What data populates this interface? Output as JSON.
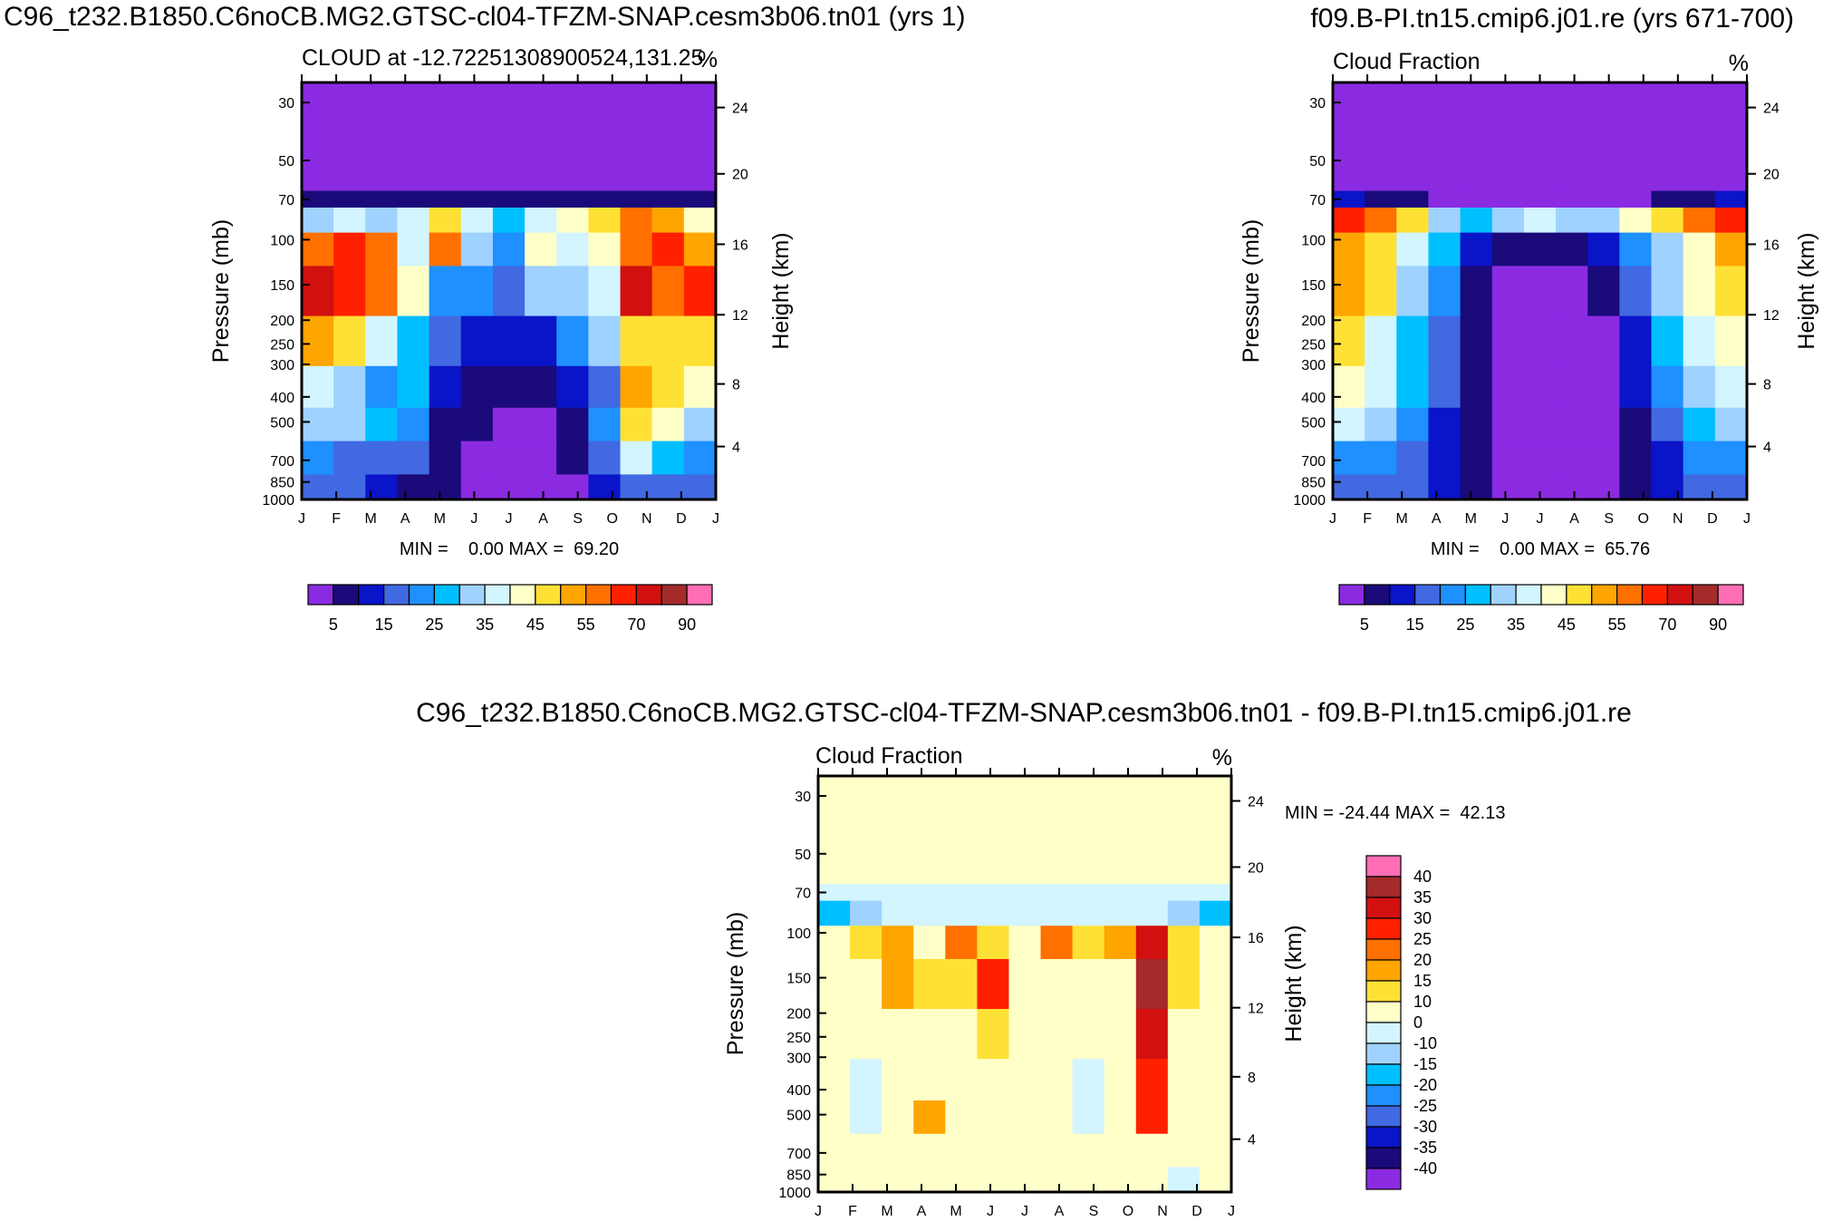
{
  "figure": {
    "title_left": "C96_t232.B1850.C6noCB.MG2.GTSC-cl04-TFZM-SNAP.cesm3b06.tn01 (yrs 1)",
    "title_right": "f09.B-PI.tn15.cmip6.j01.re (yrs 671-700)",
    "title_diff": "C96_t232.B1850.C6noCB.MG2.GTSC-cl04-TFZM-SNAP.cesm3b06.tn01 - f09.B-PI.tn15.cmip6.j01.re"
  },
  "colors": {
    "abs_levels": [
      "#8a2be2",
      "#1a0a7a",
      "#0a14c8",
      "#4169e1",
      "#1e90ff",
      "#00bfff",
      "#a0d2ff",
      "#d2f5ff",
      "#ffffc8",
      "#ffe135",
      "#ffa500",
      "#ff7000",
      "#ff2000",
      "#d21010",
      "#a52a2a",
      "#ff6eb4"
    ],
    "diff_levels": [
      "#8a2be2",
      "#1a0a7a",
      "#0a14c8",
      "#4169e1",
      "#1e90ff",
      "#00bfff",
      "#a0d2ff",
      "#d2f5ff",
      "#ffffc8",
      "#ffe135",
      "#ffa500",
      "#ff7000",
      "#ff2000",
      "#d21010",
      "#a52a2a",
      "#ff6eb4"
    ]
  },
  "chart_data": [
    {
      "id": "p1",
      "type": "heatmap",
      "title_left": "CLOUD at -12.72251308900524,131.25",
      "title_right": "%",
      "xlabel": "",
      "ylabel_left": "Pressure (mb)",
      "ylabel_right": "Height (km)",
      "x_ticks": [
        "J",
        "F",
        "M",
        "A",
        "M",
        "J",
        "J",
        "A",
        "S",
        "O",
        "N",
        "D",
        "J"
      ],
      "y_ticks": [
        "30",
        "50",
        "70",
        "100",
        "150",
        "200",
        "250",
        "300",
        "400",
        "500",
        "700",
        "850",
        "1000"
      ],
      "height_ticks": [
        "24",
        "20",
        "16",
        "12",
        "8",
        "4"
      ],
      "stats": "MIN =    0.00 MAX =  69.20",
      "colorbar_labels": [
        "5",
        "15",
        "25",
        "35",
        "45",
        "55",
        "70",
        "90"
      ],
      "grid": [
        [
          0,
          0,
          0,
          0,
          0,
          0,
          0,
          0,
          0,
          0,
          0,
          0,
          0
        ],
        [
          1,
          1,
          1,
          1,
          1,
          1,
          1,
          1,
          1,
          1,
          1,
          1,
          1
        ],
        [
          6,
          7,
          6,
          7,
          9,
          7,
          5,
          7,
          8,
          9,
          11,
          10,
          8
        ],
        [
          11,
          12,
          11,
          7,
          11,
          6,
          4,
          8,
          7,
          8,
          11,
          12,
          10
        ],
        [
          13,
          12,
          11,
          8,
          4,
          4,
          3,
          6,
          6,
          7,
          13,
          11,
          12
        ],
        [
          10,
          9,
          7,
          5,
          3,
          2,
          2,
          2,
          4,
          6,
          9,
          9,
          9
        ],
        [
          7,
          6,
          4,
          5,
          2,
          1,
          1,
          1,
          2,
          3,
          10,
          9,
          8
        ],
        [
          6,
          6,
          5,
          4,
          1,
          1,
          0,
          0,
          1,
          4,
          9,
          8,
          6
        ],
        [
          4,
          3,
          3,
          3,
          1,
          0,
          0,
          0,
          1,
          3,
          7,
          5,
          4
        ],
        [
          3,
          3,
          2,
          1,
          1,
          0,
          0,
          0,
          0,
          2,
          3,
          3,
          3
        ]
      ]
    },
    {
      "id": "p2",
      "type": "heatmap",
      "title_left": "Cloud Fraction",
      "title_right": "%",
      "xlabel": "",
      "ylabel_left": "Pressure (mb)",
      "ylabel_right": "Height (km)",
      "x_ticks": [
        "J",
        "F",
        "M",
        "A",
        "M",
        "J",
        "J",
        "A",
        "S",
        "O",
        "N",
        "D",
        "J"
      ],
      "y_ticks": [
        "30",
        "50",
        "70",
        "100",
        "150",
        "200",
        "250",
        "300",
        "400",
        "500",
        "700",
        "850",
        "1000"
      ],
      "height_ticks": [
        "24",
        "20",
        "16",
        "12",
        "8",
        "4"
      ],
      "stats": "MIN =    0.00 MAX =  65.76",
      "colorbar_labels": [
        "5",
        "15",
        "25",
        "35",
        "45",
        "55",
        "70",
        "90"
      ],
      "grid": [
        [
          0,
          0,
          0,
          0,
          0,
          0,
          0,
          0,
          0,
          0,
          0,
          0,
          0
        ],
        [
          2,
          1,
          1,
          0,
          0,
          0,
          0,
          0,
          0,
          0,
          1,
          1,
          2
        ],
        [
          12,
          11,
          9,
          6,
          5,
          6,
          7,
          6,
          6,
          8,
          9,
          11,
          12
        ],
        [
          10,
          9,
          7,
          5,
          2,
          1,
          1,
          1,
          2,
          4,
          6,
          8,
          10
        ],
        [
          10,
          9,
          6,
          4,
          1,
          0,
          0,
          0,
          1,
          3,
          6,
          8,
          9
        ],
        [
          9,
          7,
          5,
          3,
          1,
          0,
          0,
          0,
          0,
          2,
          5,
          7,
          8
        ],
        [
          8,
          7,
          5,
          3,
          1,
          0,
          0,
          0,
          0,
          2,
          4,
          6,
          7
        ],
        [
          7,
          6,
          4,
          2,
          1,
          0,
          0,
          0,
          0,
          1,
          3,
          5,
          6
        ],
        [
          4,
          4,
          3,
          2,
          1,
          0,
          0,
          0,
          0,
          1,
          2,
          4,
          4
        ],
        [
          3,
          3,
          3,
          2,
          1,
          0,
          0,
          0,
          0,
          1,
          2,
          3,
          3
        ]
      ]
    },
    {
      "id": "p3",
      "type": "heatmap",
      "title_left": "Cloud Fraction",
      "title_right": "%",
      "xlabel": "",
      "ylabel_left": "Pressure (mb)",
      "ylabel_right": "Height (km)",
      "x_ticks": [
        "J",
        "F",
        "M",
        "A",
        "M",
        "J",
        "J",
        "A",
        "S",
        "O",
        "N",
        "D",
        "J"
      ],
      "y_ticks": [
        "30",
        "50",
        "70",
        "100",
        "150",
        "200",
        "250",
        "300",
        "400",
        "500",
        "700",
        "850",
        "1000"
      ],
      "height_ticks": [
        "24",
        "20",
        "16",
        "12",
        "8",
        "4"
      ],
      "stats": "MIN = -24.44 MAX =  42.13",
      "colorbar_labels": [
        "40",
        "35",
        "30",
        "25",
        "20",
        "15",
        "10",
        "0",
        "-10",
        "-15",
        "-20",
        "-25",
        "-30",
        "-35",
        "-40"
      ],
      "grid": [
        [
          8,
          8,
          8,
          8,
          8,
          8,
          8,
          8,
          8,
          8,
          8,
          8,
          8
        ],
        [
          7,
          7,
          7,
          7,
          7,
          7,
          7,
          7,
          7,
          7,
          7,
          7,
          7
        ],
        [
          5,
          6,
          7,
          7,
          7,
          7,
          7,
          7,
          7,
          7,
          7,
          6,
          5
        ],
        [
          8,
          9,
          10,
          8,
          11,
          9,
          8,
          11,
          9,
          10,
          13,
          9,
          8
        ],
        [
          8,
          8,
          10,
          9,
          9,
          12,
          8,
          8,
          8,
          8,
          14,
          9,
          8
        ],
        [
          8,
          8,
          8,
          8,
          8,
          9,
          8,
          8,
          8,
          8,
          13,
          8,
          8
        ],
        [
          8,
          7,
          8,
          8,
          8,
          8,
          8,
          8,
          7,
          8,
          12,
          8,
          8
        ],
        [
          8,
          7,
          8,
          10,
          8,
          8,
          8,
          8,
          7,
          8,
          12,
          8,
          8
        ],
        [
          8,
          8,
          8,
          8,
          8,
          8,
          8,
          8,
          8,
          8,
          8,
          8,
          8
        ],
        [
          8,
          8,
          8,
          8,
          8,
          8,
          8,
          8,
          8,
          8,
          8,
          7,
          8
        ]
      ]
    }
  ]
}
